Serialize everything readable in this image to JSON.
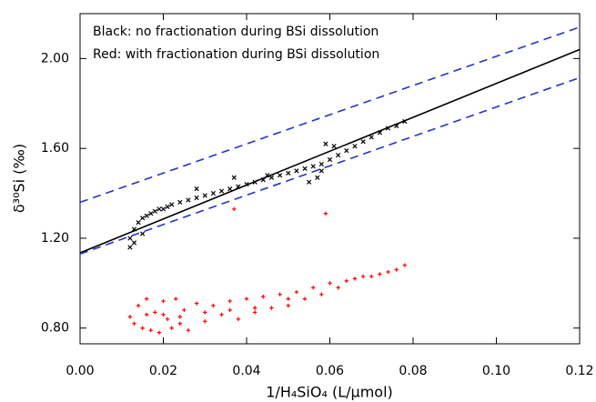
{
  "chart_data": {
    "type": "scatter",
    "x_label": "1/H₄SiO₄ (L/μmol)",
    "y_label": "δ³⁰Si (‰)",
    "annotations": [
      {
        "text": "Black: no fractionation during BSi dissolution",
        "color": "#000000"
      },
      {
        "text": "Red: with fractionation during BSi dissolution",
        "color": "#ff0000"
      }
    ],
    "xlim": [
      0,
      0.12
    ],
    "ylim": [
      0.73,
      2.2
    ],
    "xticks": [
      {
        "value": 0,
        "label": "0.00"
      },
      {
        "value": 0.02,
        "label": "0.02"
      },
      {
        "value": 0.04,
        "label": "0.04"
      },
      {
        "value": 0.06,
        "label": "0.06"
      },
      {
        "value": 0.08,
        "label": "0.08"
      },
      {
        "value": 0.1,
        "label": "0.10"
      },
      {
        "value": 0.12,
        "label": "0.12"
      }
    ],
    "yticks": [
      {
        "value": 0.8,
        "label": "0.80"
      },
      {
        "value": 1.2,
        "label": "1.20"
      },
      {
        "value": 1.6,
        "label": "1.60"
      },
      {
        "value": 2.0,
        "label": "2.00"
      }
    ],
    "series": [
      {
        "style": "solid",
        "color": "#000000",
        "x": [
          0,
          0.12
        ],
        "values": [
          1.135,
          2.04
        ]
      },
      {
        "style": "dashed",
        "color": "#2233cc",
        "x": [
          0,
          0.12
        ],
        "values": [
          1.36,
          2.14
        ]
      },
      {
        "style": "dashed",
        "color": "#2233cc",
        "x": [
          0,
          0.12
        ],
        "values": [
          1.13,
          1.915
        ]
      },
      {
        "style": "cross",
        "color": "#000000",
        "x": [
          0.012,
          0.012,
          0.013,
          0.013,
          0.014,
          0.015,
          0.015,
          0.016,
          0.017,
          0.018,
          0.019,
          0.02,
          0.021,
          0.022,
          0.024,
          0.026,
          0.028,
          0.028,
          0.03,
          0.032,
          0.034,
          0.036,
          0.037,
          0.038,
          0.04,
          0.042,
          0.044,
          0.045,
          0.046,
          0.048,
          0.05,
          0.052,
          0.054,
          0.055,
          0.056,
          0.057,
          0.058,
          0.058,
          0.059,
          0.06,
          0.061,
          0.062,
          0.064,
          0.066,
          0.068,
          0.07,
          0.072,
          0.074,
          0.076,
          0.078
        ],
        "values": [
          1.16,
          1.2,
          1.18,
          1.24,
          1.27,
          1.22,
          1.29,
          1.3,
          1.31,
          1.32,
          1.33,
          1.33,
          1.34,
          1.35,
          1.36,
          1.37,
          1.38,
          1.42,
          1.39,
          1.4,
          1.41,
          1.42,
          1.47,
          1.43,
          1.44,
          1.45,
          1.46,
          1.48,
          1.47,
          1.48,
          1.49,
          1.5,
          1.51,
          1.45,
          1.52,
          1.47,
          1.53,
          1.5,
          1.62,
          1.55,
          1.61,
          1.57,
          1.59,
          1.61,
          1.63,
          1.65,
          1.67,
          1.69,
          1.7,
          1.72
        ]
      },
      {
        "style": "plus",
        "color": "#ff0000",
        "x": [
          0.012,
          0.013,
          0.014,
          0.015,
          0.016,
          0.017,
          0.018,
          0.019,
          0.02,
          0.021,
          0.022,
          0.023,
          0.024,
          0.025,
          0.026,
          0.028,
          0.03,
          0.032,
          0.034,
          0.036,
          0.037,
          0.038,
          0.04,
          0.042,
          0.044,
          0.046,
          0.048,
          0.05,
          0.052,
          0.054,
          0.056,
          0.058,
          0.059,
          0.06,
          0.062,
          0.064,
          0.066,
          0.068,
          0.07,
          0.072,
          0.074,
          0.076,
          0.078,
          0.016,
          0.02,
          0.024,
          0.03,
          0.036,
          0.042,
          0.05
        ],
        "values": [
          0.85,
          0.82,
          0.9,
          0.8,
          0.93,
          0.79,
          0.87,
          0.78,
          0.92,
          0.84,
          0.8,
          0.93,
          0.82,
          0.88,
          0.79,
          0.91,
          0.83,
          0.9,
          0.86,
          0.92,
          1.33,
          0.84,
          0.93,
          0.87,
          0.94,
          0.89,
          0.95,
          0.9,
          0.96,
          0.93,
          0.98,
          0.95,
          1.31,
          1.0,
          0.98,
          1.01,
          1.02,
          1.03,
          1.03,
          1.04,
          1.05,
          1.06,
          1.08,
          0.86,
          0.86,
          0.85,
          0.87,
          0.88,
          0.89,
          0.93
        ]
      }
    ]
  }
}
